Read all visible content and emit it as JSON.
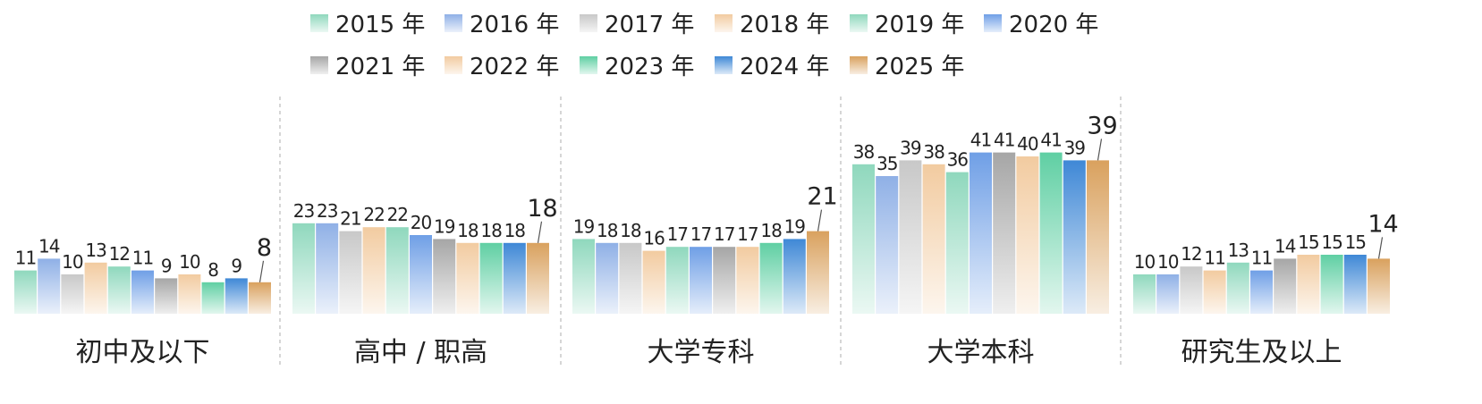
{
  "chart_data": {
    "type": "bar",
    "title": "",
    "xlabel": "",
    "ylabel": "",
    "ylim": [
      0,
      45
    ],
    "grid": false,
    "legend_position": "top",
    "series_names": [
      "2015 年",
      "2016 年",
      "2017 年",
      "2018 年",
      "2019 年",
      "2020 年",
      "2021 年",
      "2022 年",
      "2023 年",
      "2024 年",
      "2025 年"
    ],
    "series_colors": [
      "#8fd8bd",
      "#8fb0e6",
      "#c8c8c8",
      "#f2cba0",
      "#8fd8bd",
      "#6f9fe6",
      "#a6a6a6",
      "#f2cba0",
      "#5fcfa3",
      "#3f88d6",
      "#d9a15e"
    ],
    "categories": [
      {
        "label": "初中及以下",
        "values": [
          11,
          14,
          10,
          13,
          12,
          11,
          9,
          10,
          8,
          9,
          8
        ]
      },
      {
        "label": "高中 / 职高",
        "values": [
          23,
          23,
          21,
          22,
          22,
          20,
          19,
          18,
          18,
          18,
          18
        ]
      },
      {
        "label": "大学专科",
        "values": [
          19,
          18,
          18,
          16,
          17,
          17,
          17,
          17,
          18,
          19,
          21
        ]
      },
      {
        "label": "大学本科",
        "values": [
          38,
          35,
          39,
          38,
          36,
          41,
          41,
          40,
          41,
          39,
          39
        ]
      },
      {
        "label": "研究生及以上",
        "values": [
          10,
          10,
          12,
          11,
          13,
          11,
          14,
          15,
          15,
          15,
          14
        ]
      }
    ]
  }
}
